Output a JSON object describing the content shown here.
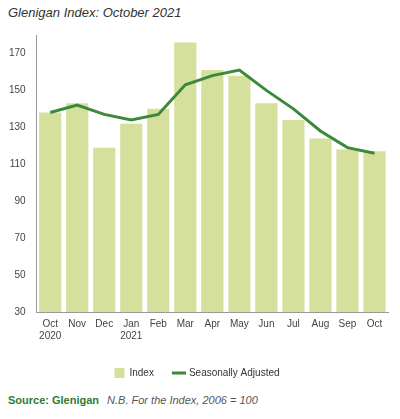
{
  "chart_data": {
    "type": "bar",
    "title": "Glenigan Index: October 2021",
    "source": "Source: Glenigan",
    "note": "N.B. For the Index, 2006 = 100",
    "categories": [
      "Oct 2020",
      "Nov",
      "Dec",
      "Jan 2021",
      "Feb",
      "Mar",
      "Apr",
      "May",
      "Jun",
      "Jul",
      "Aug",
      "Sep",
      "Oct"
    ],
    "series": [
      {
        "name": "Index",
        "type": "bar",
        "color": "#d4e09b",
        "values": [
          138,
          143,
          119,
          132,
          140,
          176,
          161,
          158,
          143,
          134,
          124,
          118,
          117
        ]
      },
      {
        "name": "Seasonally Adjusted",
        "type": "line",
        "color": "#3b8a3a",
        "values": [
          138,
          142,
          137,
          134,
          137,
          153,
          158,
          161,
          150,
          140,
          128,
          119,
          116
        ]
      }
    ],
    "ylim": [
      30,
      180
    ],
    "yticks": [
      30,
      50,
      70,
      90,
      110,
      130,
      150,
      170
    ],
    "grid": false,
    "legend": "bottom"
  }
}
